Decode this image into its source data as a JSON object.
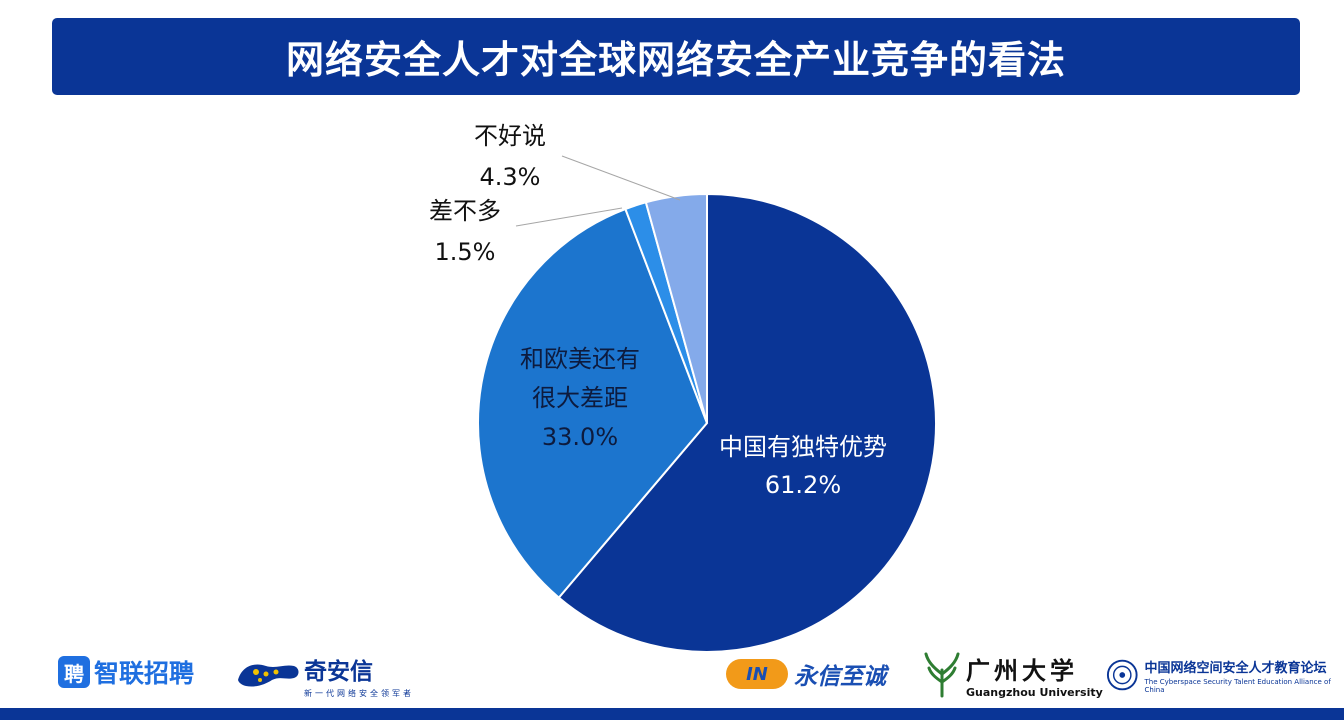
{
  "title": "网络安全人才对全球网络安全产业竞争的看法",
  "chart_data": {
    "type": "pie",
    "title": "网络安全人才对全球网络安全产业竞争的看法",
    "slices": [
      {
        "label": "中国有独特优势",
        "value": 61.2,
        "display": "61.2%",
        "color": "#0a3596",
        "text_color": "#ffffff"
      },
      {
        "label": "和欧美还有很大差距",
        "label_lines": [
          "和欧美还有",
          "很大差距"
        ],
        "value": 33.0,
        "display": "33.0%",
        "color": "#1c75ce",
        "text_color": "#0d1b3e"
      },
      {
        "label": "差不多",
        "value": 1.5,
        "display": "1.5%",
        "color": "#2c8ee8",
        "text_color": "#111111"
      },
      {
        "label": "不好说",
        "value": 4.3,
        "display": "4.3%",
        "color": "#84aaea",
        "text_color": "#111111"
      }
    ]
  },
  "logos": {
    "zhilian": {
      "badge": "聘",
      "name": "智联招聘"
    },
    "qax": {
      "name": "奇安信",
      "tagline": "新一代网络安全领军者"
    },
    "yongxin": {
      "badge": "IN",
      "name": "永信至诚"
    },
    "gzu": {
      "name": "广州大学",
      "english": "Guangzhou University"
    },
    "alliance": {
      "name": "中国网络空间安全人才教育论坛",
      "english": "The Cyberspace Security Talent Education Alliance of China"
    }
  }
}
